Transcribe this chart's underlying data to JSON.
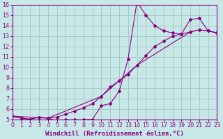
{
  "xlabel": "Windchill (Refroidissement éolien,°C)",
  "bg_color": "#c8e8e8",
  "grid_color": "#a8c8c8",
  "line_color": "#880080",
  "xlim": [
    0,
    23
  ],
  "ylim": [
    5,
    16
  ],
  "xticks": [
    0,
    1,
    2,
    3,
    4,
    5,
    6,
    7,
    8,
    9,
    10,
    11,
    12,
    13,
    14,
    15,
    16,
    17,
    18,
    19,
    20,
    21,
    22,
    23
  ],
  "yticks": [
    5,
    6,
    7,
    8,
    9,
    10,
    11,
    12,
    13,
    14,
    15,
    16
  ],
  "curve1_x": [
    0,
    1,
    2,
    3,
    4,
    5,
    6,
    7,
    8,
    9,
    10,
    11,
    12,
    13,
    14,
    15,
    16,
    17,
    18,
    19,
    20,
    21,
    22,
    23
  ],
  "curve1_y": [
    5.3,
    5.1,
    5.0,
    5.2,
    5.1,
    4.85,
    4.95,
    4.95,
    4.95,
    5.0,
    6.3,
    6.5,
    7.7,
    10.8,
    16.3,
    15.0,
    14.0,
    13.5,
    13.3,
    13.2,
    14.6,
    14.7,
    13.5,
    13.3
  ],
  "curve2_x": [
    0,
    1,
    2,
    3,
    4,
    5,
    6,
    7,
    8,
    9,
    10,
    11,
    12,
    13,
    14,
    15,
    16,
    17,
    18,
    19,
    20,
    21,
    22,
    23
  ],
  "curve2_y": [
    5.3,
    5.1,
    5.0,
    5.2,
    5.1,
    5.2,
    5.5,
    5.8,
    6.1,
    6.5,
    7.2,
    8.1,
    8.7,
    9.3,
    10.2,
    11.1,
    12.0,
    12.5,
    13.0,
    13.2,
    13.4,
    13.6,
    13.5,
    13.3
  ],
  "curve3_x": [
    0,
    4,
    10,
    14,
    20,
    21,
    22,
    23
  ],
  "curve3_y": [
    5.3,
    5.1,
    7.2,
    10.2,
    13.4,
    13.6,
    13.5,
    13.3
  ],
  "xlabel_fontsize": 6.5,
  "tick_fontsize": 5.8
}
